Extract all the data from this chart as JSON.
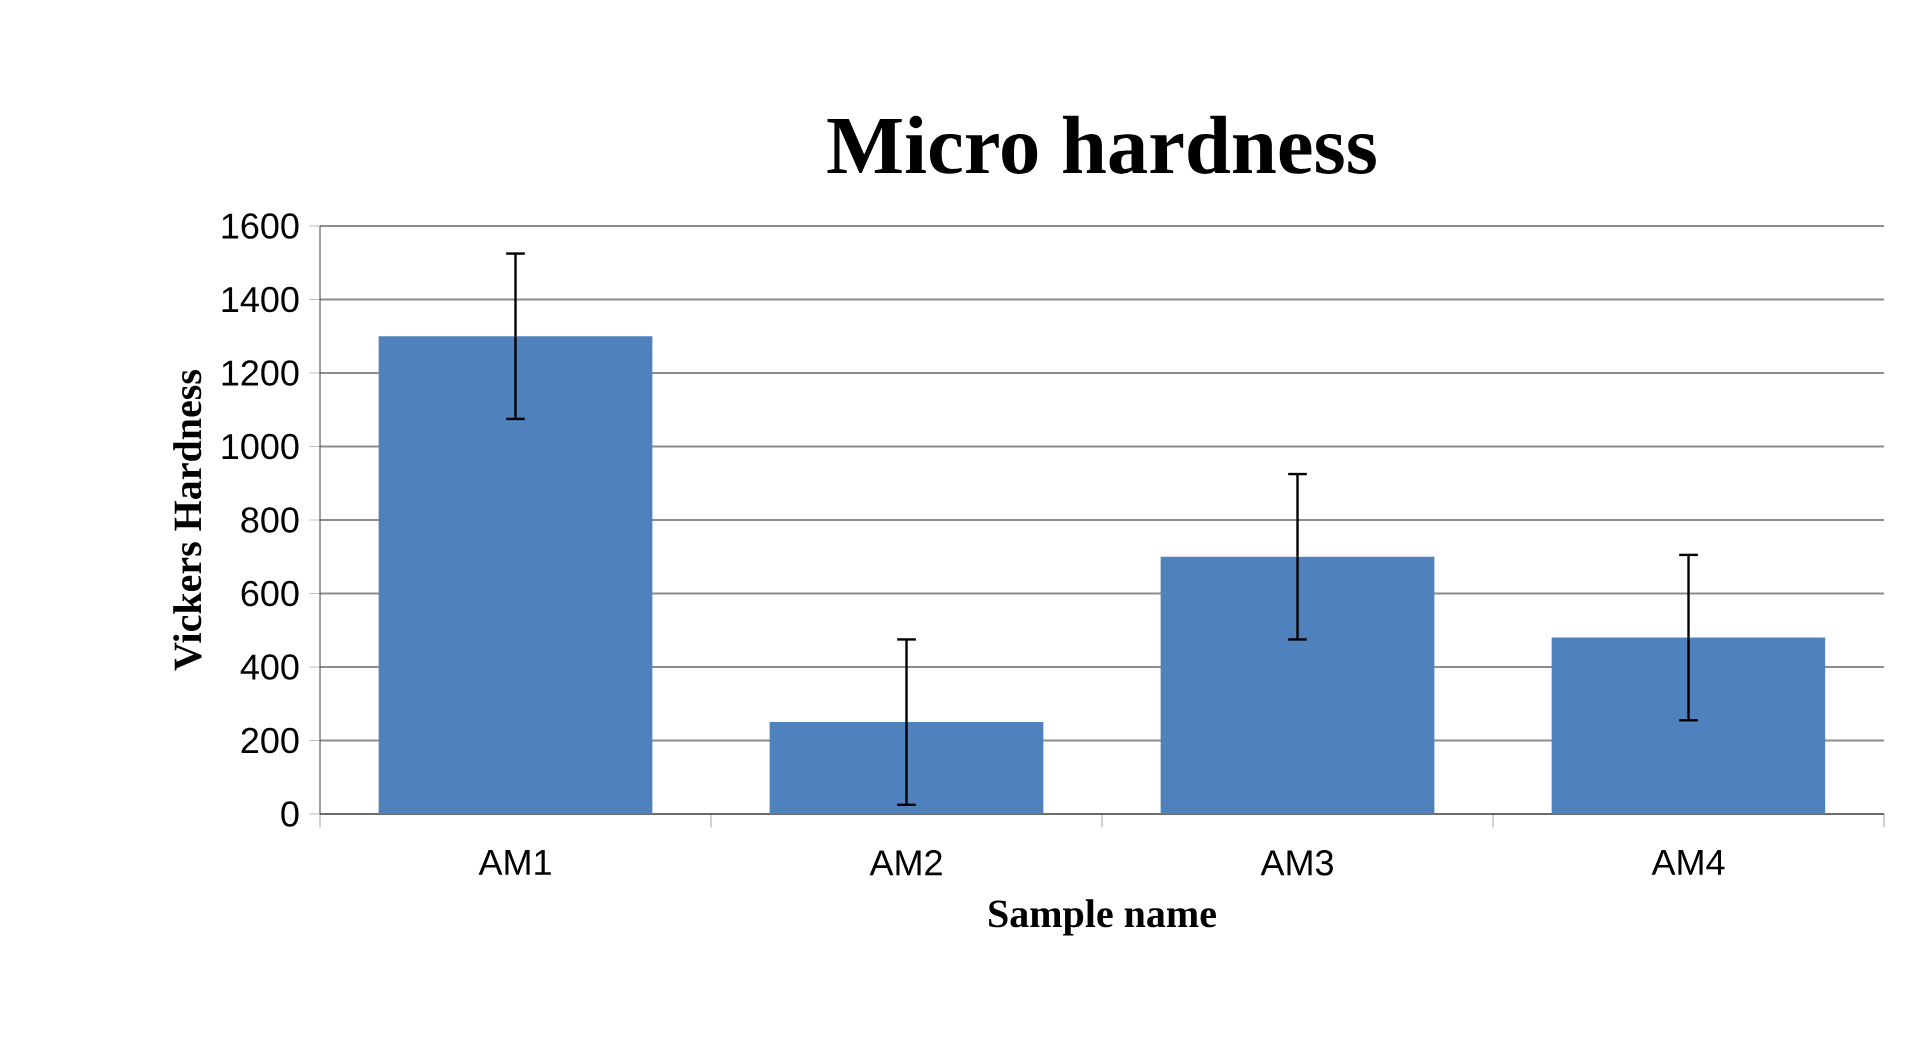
{
  "chart_data": {
    "type": "bar",
    "title": "Micro hardness",
    "xlabel": "Sample name",
    "ylabel": "Vickers Hardness",
    "categories": [
      "AM1",
      "AM2",
      "AM3",
      "AM4"
    ],
    "values": [
      1300,
      250,
      700,
      480
    ],
    "errors": [
      225,
      225,
      225,
      225
    ],
    "color": "#4f81bd",
    "ylim": [
      0,
      1600
    ],
    "yticks": [
      0,
      200,
      400,
      600,
      800,
      1000,
      1200,
      1400,
      1600
    ],
    "grid": "y"
  }
}
